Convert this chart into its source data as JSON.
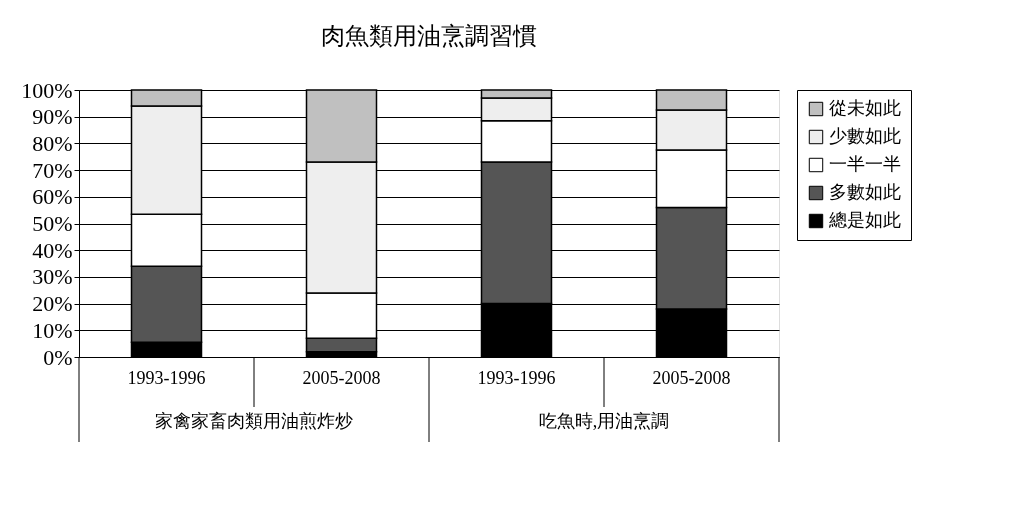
{
  "chart_data": {
    "type": "bar",
    "title": "肉魚類用油烹調習慣",
    "stacked": true,
    "categories": [
      "1993-1996",
      "2005-2008",
      "1993-1996",
      "2005-2008"
    ],
    "series": [
      {
        "name": "總是如此",
        "color": "#000000",
        "values": [
          5.5,
          2,
          20,
          18
        ]
      },
      {
        "name": "多數如此",
        "color": "#555555",
        "values": [
          28.5,
          5,
          53,
          38
        ]
      },
      {
        "name": "一半一半",
        "color": "#ffffff",
        "values": [
          19.5,
          17,
          15.5,
          21.5
        ]
      },
      {
        "name": "少數如此",
        "color": "#eeeeee",
        "values": [
          40.5,
          49,
          8.5,
          15
        ]
      },
      {
        "name": "從未如此",
        "color": "#c0c0c0",
        "values": [
          6,
          27,
          3,
          7.5
        ]
      }
    ],
    "annotations": [
      "家禽家畜肉類用油煎炸炒",
      "吃魚時,用油烹調"
    ],
    "ylim": [
      0,
      100
    ],
    "yticks": [
      {
        "value": 0,
        "label": "0%"
      },
      {
        "value": 10,
        "label": "10%"
      },
      {
        "value": 20,
        "label": "20%"
      },
      {
        "value": 30,
        "label": "30%"
      },
      {
        "value": 40,
        "label": "40%"
      },
      {
        "value": 50,
        "label": "50%"
      },
      {
        "value": 60,
        "label": "60%"
      },
      {
        "value": 70,
        "label": "70%"
      },
      {
        "value": 80,
        "label": "80%"
      },
      {
        "value": 90,
        "label": "90%"
      },
      {
        "value": 100,
        "label": "100%"
      }
    ],
    "grid": "y",
    "legend": "right"
  }
}
